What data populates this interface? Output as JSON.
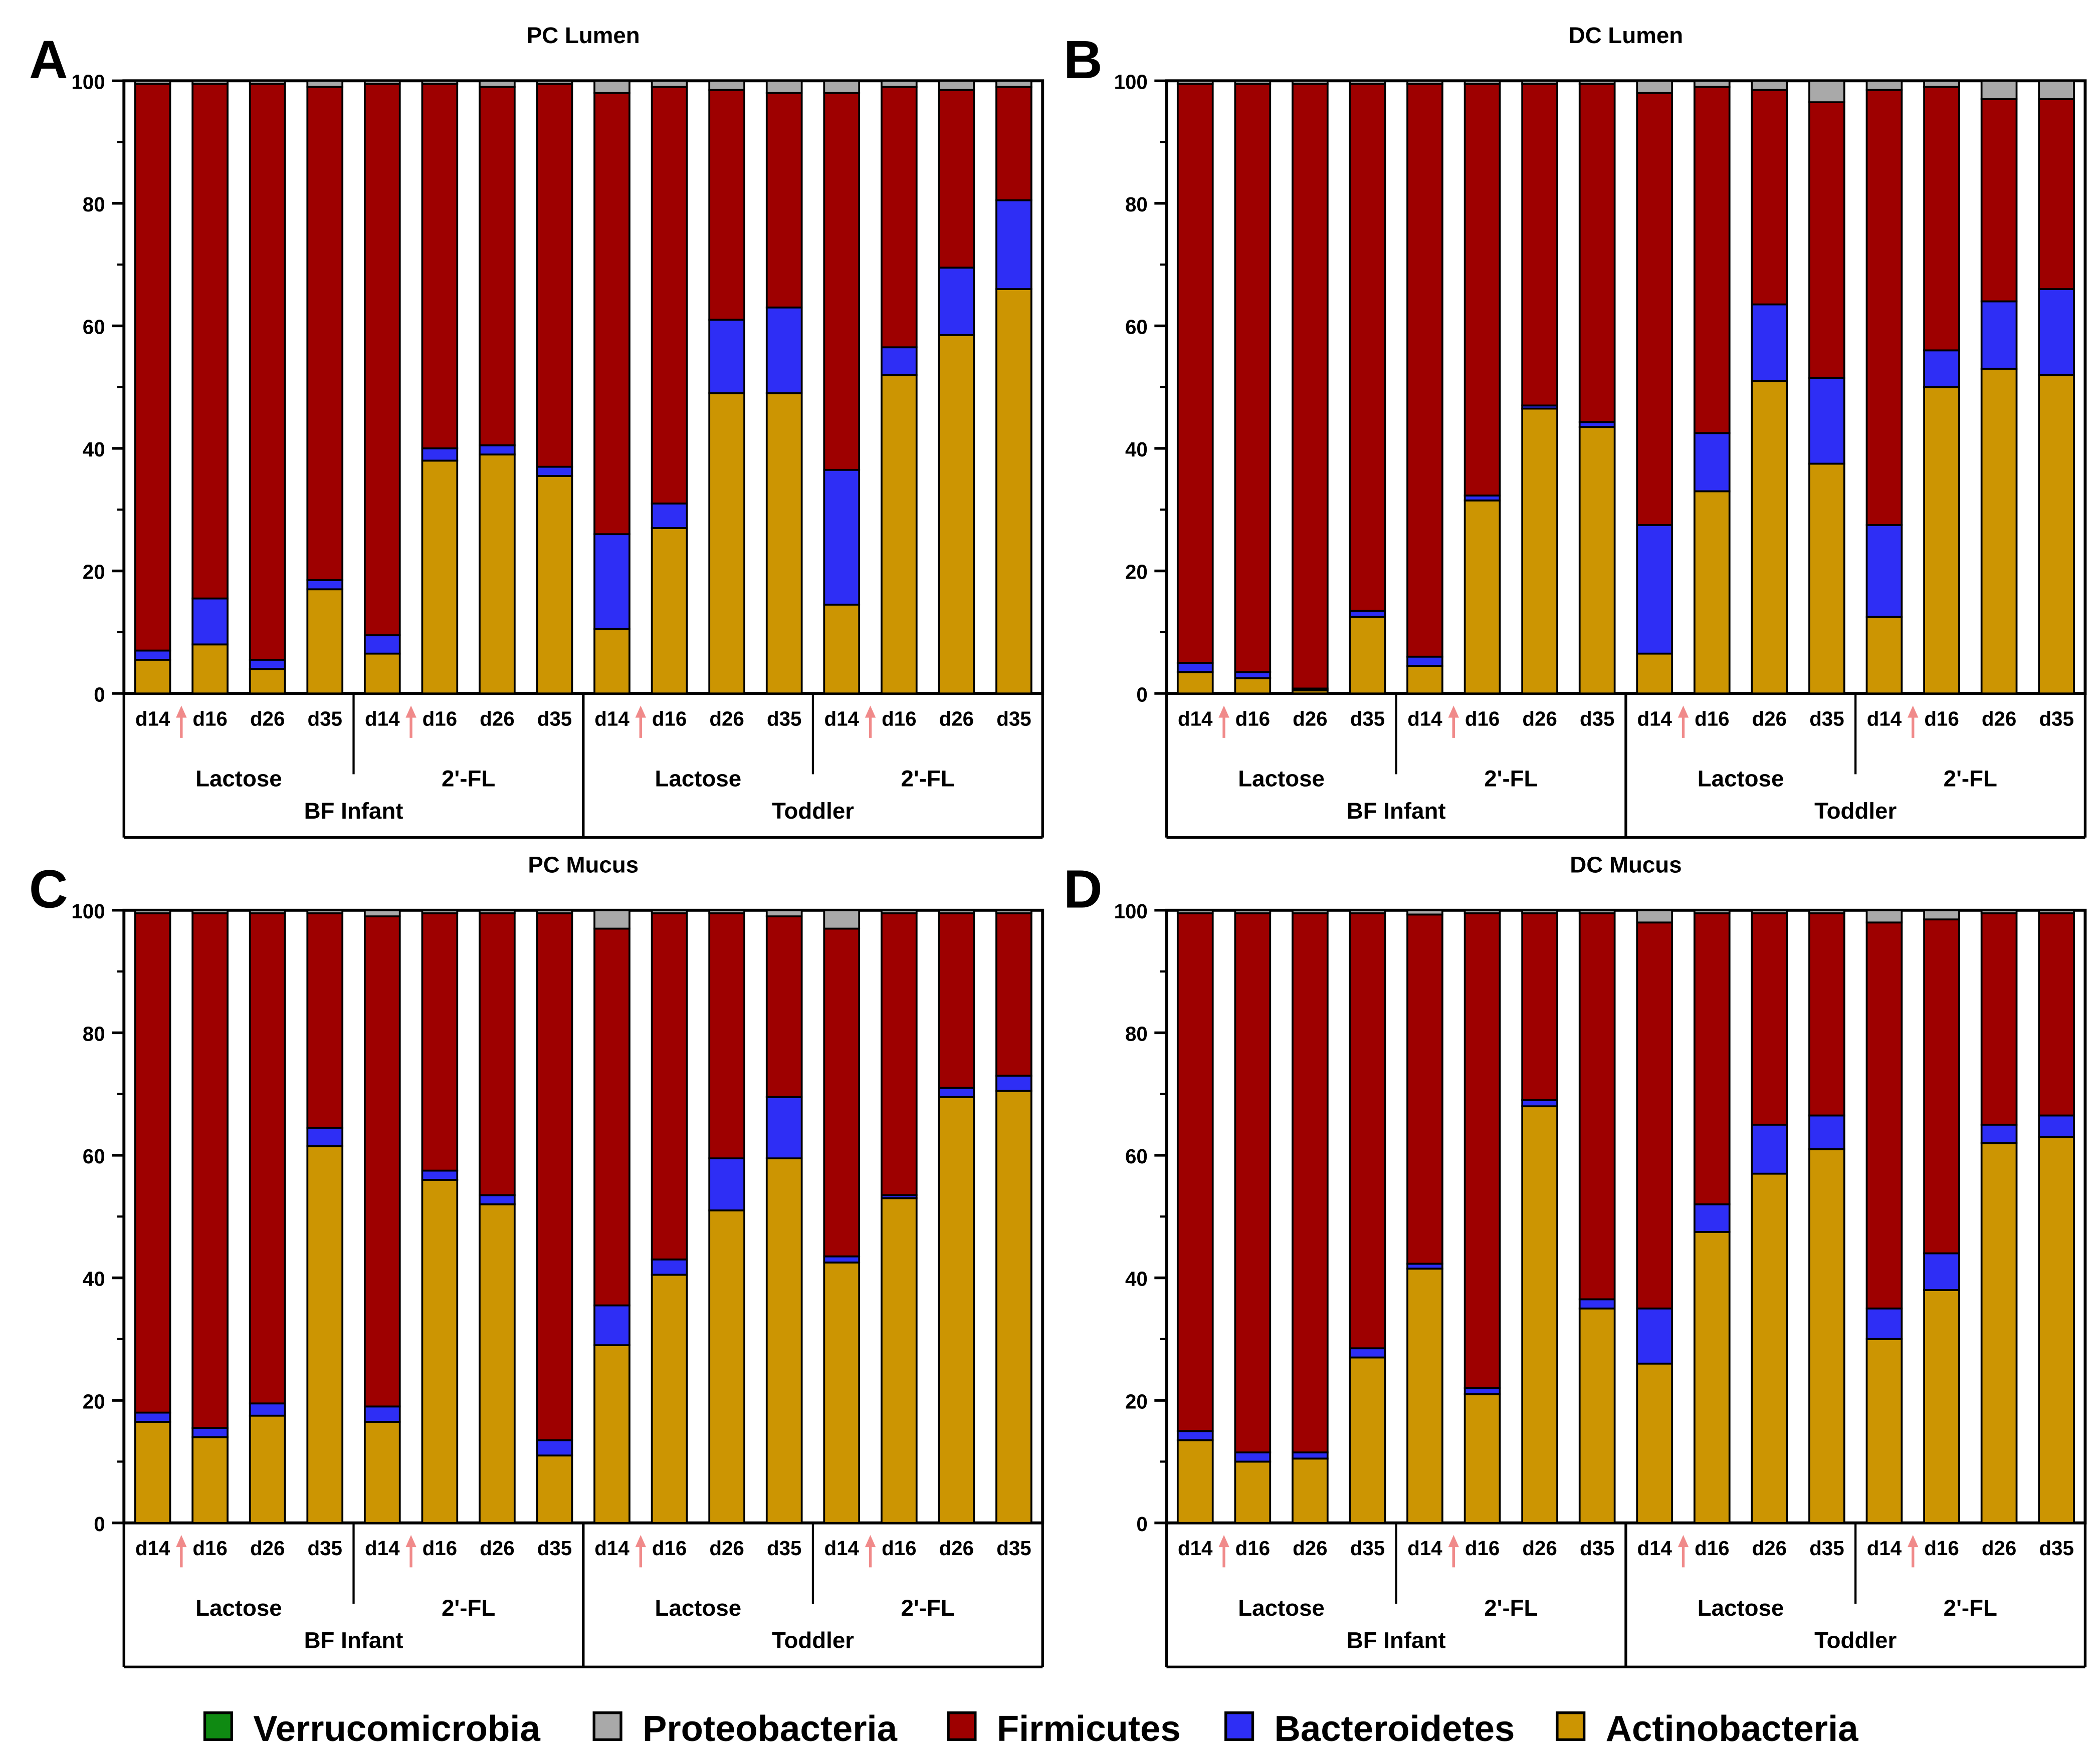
{
  "colors": {
    "Verrucomicrobia": "#0f8a12",
    "Proteobacteria": "#a9a9a9",
    "Firmicutes": "#9e0000",
    "Bacteroidetes": "#2e2ef5",
    "Actinobacteria": "#cc9502",
    "arrow": "#f08a8a"
  },
  "legend": {
    "items": [
      "Verrucomicrobia",
      "Proteobacteria",
      "Firmicutes",
      "Bacteroidetes",
      "Actinobacteria"
    ]
  },
  "chart_data": [
    {
      "type": "bar",
      "stacked": true,
      "panel_letter": "A",
      "title": "PC Lumen",
      "ylim": [
        0,
        100
      ],
      "yticks": [
        "0",
        "20",
        "40",
        "60",
        "80",
        "100"
      ],
      "categories": [
        "d14",
        "d16",
        "d26",
        "d35",
        "d14",
        "d16",
        "d26",
        "d35",
        "d14",
        "d16",
        "d26",
        "d35",
        "d14",
        "d16",
        "d26",
        "d35"
      ],
      "group_labels": [
        "Lactose",
        "2'-FL",
        "Lactose",
        "2'-FL"
      ],
      "supergroup_labels": [
        "BF Infant",
        "Toddler"
      ],
      "series": [
        {
          "name": "Actinobacteria",
          "values": [
            5.5,
            8,
            4,
            17,
            6.5,
            38,
            39,
            35.5,
            10.5,
            27,
            49,
            49,
            14.5,
            52,
            58.5,
            66
          ]
        },
        {
          "name": "Bacteroidetes",
          "values": [
            1.5,
            7.5,
            1.5,
            1.5,
            3,
            2,
            1.5,
            1.5,
            15.5,
            4,
            12,
            14,
            22,
            4.5,
            11,
            14.5
          ]
        },
        {
          "name": "Firmicutes",
          "values": [
            92.5,
            84,
            94,
            80.5,
            90,
            59.5,
            58.5,
            62.5,
            72,
            68,
            37.5,
            35,
            61.5,
            42.5,
            29,
            18.5
          ]
        },
        {
          "name": "Proteobacteria",
          "values": [
            0.5,
            0.5,
            0.5,
            1,
            0.5,
            0.5,
            1,
            0.5,
            2,
            1,
            1.5,
            2,
            2,
            1,
            1.5,
            1
          ]
        },
        {
          "name": "Verrucomicrobia",
          "values": [
            0,
            0,
            0,
            0,
            0,
            0,
            0,
            0,
            0,
            0,
            0,
            0,
            0,
            0,
            0,
            0
          ]
        }
      ]
    },
    {
      "type": "bar",
      "stacked": true,
      "panel_letter": "B",
      "title": "DC Lumen",
      "ylim": [
        0,
        100
      ],
      "yticks": [
        "0",
        "20",
        "40",
        "60",
        "80",
        "100"
      ],
      "categories": [
        "d14",
        "d16",
        "d26",
        "d35",
        "d14",
        "d16",
        "d26",
        "d35",
        "d14",
        "d16",
        "d26",
        "d35",
        "d14",
        "d16",
        "d26",
        "d35"
      ],
      "group_labels": [
        "Lactose",
        "2'-FL",
        "Lactose",
        "2'-FL"
      ],
      "supergroup_labels": [
        "BF Infant",
        "Toddler"
      ],
      "series": [
        {
          "name": "Actinobacteria",
          "values": [
            3.5,
            2.5,
            0.5,
            12.5,
            4.5,
            31.5,
            46.5,
            43.5,
            6.5,
            33,
            51,
            37.5,
            12.5,
            50,
            53,
            52
          ]
        },
        {
          "name": "Bacteroidetes",
          "values": [
            1.5,
            1,
            0.3,
            1,
            1.5,
            0.8,
            0.5,
            0.8,
            21,
            9.5,
            12.5,
            14,
            15,
            6,
            11,
            14
          ]
        },
        {
          "name": "Firmicutes",
          "values": [
            94.5,
            96,
            98.7,
            86,
            93.5,
            67.2,
            52.5,
            55.2,
            70.5,
            56.5,
            35,
            45,
            71,
            43,
            33,
            31
          ]
        },
        {
          "name": "Proteobacteria",
          "values": [
            0.5,
            0.5,
            0.5,
            0.5,
            0.5,
            0.5,
            0.5,
            0.5,
            2,
            1,
            1.5,
            3.5,
            1.5,
            1,
            3,
            3
          ]
        },
        {
          "name": "Verrucomicrobia",
          "values": [
            0,
            0,
            0,
            0,
            0,
            0,
            0,
            0,
            0,
            0,
            0,
            0,
            0,
            0,
            0,
            0
          ]
        }
      ]
    },
    {
      "type": "bar",
      "stacked": true,
      "panel_letter": "C",
      "title": "PC Mucus",
      "ylim": [
        0,
        100
      ],
      "yticks": [
        "0",
        "20",
        "40",
        "60",
        "80",
        "100"
      ],
      "categories": [
        "d14",
        "d16",
        "d26",
        "d35",
        "d14",
        "d16",
        "d26",
        "d35",
        "d14",
        "d16",
        "d26",
        "d35",
        "d14",
        "d16",
        "d26",
        "d35"
      ],
      "group_labels": [
        "Lactose",
        "2'-FL",
        "Lactose",
        "2'-FL"
      ],
      "supergroup_labels": [
        "BF Infant",
        "Toddler"
      ],
      "series": [
        {
          "name": "Actinobacteria",
          "values": [
            16.5,
            14,
            17.5,
            61.5,
            16.5,
            56,
            52,
            11,
            29,
            40.5,
            51,
            59.5,
            42.5,
            53,
            69.5,
            70.5
          ]
        },
        {
          "name": "Bacteroidetes",
          "values": [
            1.5,
            1.5,
            2,
            3,
            2.5,
            1.5,
            1.5,
            2.5,
            6.5,
            2.5,
            8.5,
            10,
            1,
            0.5,
            1.5,
            2.5
          ]
        },
        {
          "name": "Firmicutes",
          "values": [
            81.5,
            84,
            80,
            35,
            80,
            42,
            46,
            86,
            61.5,
            56.5,
            40,
            29.5,
            53.5,
            46,
            28.5,
            26.5
          ]
        },
        {
          "name": "Proteobacteria",
          "values": [
            0.5,
            0.5,
            0.5,
            0.5,
            1,
            0.5,
            0.5,
            0.5,
            3,
            0.5,
            0.5,
            1,
            3,
            0.5,
            0.5,
            0.5
          ]
        },
        {
          "name": "Verrucomicrobia",
          "values": [
            0,
            0,
            0,
            0,
            0,
            0,
            0,
            0,
            0,
            0,
            0,
            0,
            0,
            0,
            0,
            0
          ]
        }
      ]
    },
    {
      "type": "bar",
      "stacked": true,
      "panel_letter": "D",
      "title": "DC Mucus",
      "ylim": [
        0,
        100
      ],
      "yticks": [
        "0",
        "20",
        "40",
        "60",
        "80",
        "100"
      ],
      "categories": [
        "d14",
        "d16",
        "d26",
        "d35",
        "d14",
        "d16",
        "d26",
        "d35",
        "d14",
        "d16",
        "d26",
        "d35",
        "d14",
        "d16",
        "d26",
        "d35"
      ],
      "group_labels": [
        "Lactose",
        "2'-FL",
        "Lactose",
        "2'-FL"
      ],
      "supergroup_labels": [
        "BF Infant",
        "Toddler"
      ],
      "series": [
        {
          "name": "Actinobacteria",
          "values": [
            13.5,
            10,
            10.5,
            27,
            41.5,
            21,
            68,
            35,
            26,
            47.5,
            57,
            61,
            30,
            38,
            62,
            63
          ]
        },
        {
          "name": "Bacteroidetes",
          "values": [
            1.5,
            1.5,
            1,
            1.5,
            0.8,
            1,
            1,
            1.5,
            9,
            4.5,
            8,
            5.5,
            5,
            6,
            3,
            3.5
          ]
        },
        {
          "name": "Firmicutes",
          "values": [
            84.5,
            88,
            88,
            71,
            57,
            77.5,
            30.5,
            63,
            63,
            47.5,
            34.5,
            33,
            63,
            54.5,
            34.5,
            33
          ]
        },
        {
          "name": "Proteobacteria",
          "values": [
            0.5,
            0.5,
            0.5,
            0.5,
            0.7,
            0.5,
            0.5,
            0.5,
            2,
            0.5,
            0.5,
            0.5,
            2,
            1.5,
            0.5,
            0.5
          ]
        },
        {
          "name": "Verrucomicrobia",
          "values": [
            0,
            0,
            0,
            0,
            0,
            0,
            0,
            0,
            0,
            0,
            0,
            0,
            0,
            0,
            0,
            0
          ]
        }
      ]
    }
  ]
}
